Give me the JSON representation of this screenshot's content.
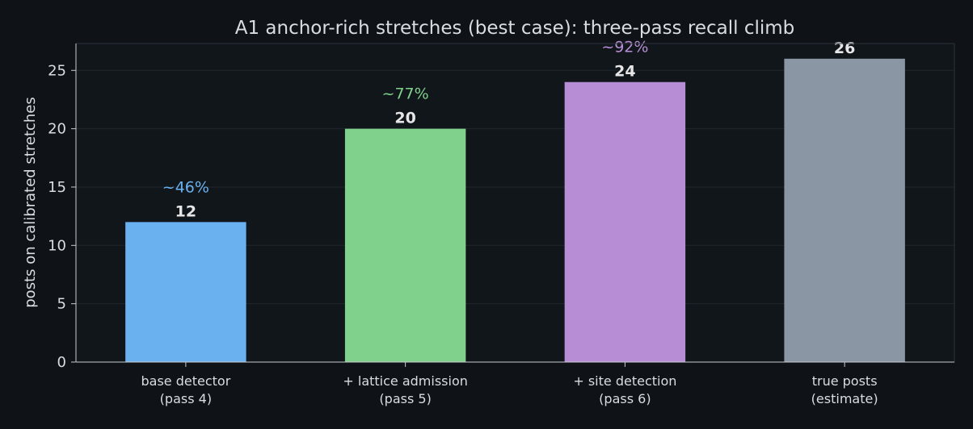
{
  "chart_data": {
    "type": "bar",
    "title": "A1 anchor-rich stretches (best case): three-pass recall climb",
    "xlabel": "",
    "ylabel": "posts on calibrated stretches",
    "ylim": [
      0,
      27.3
    ],
    "yticks": [
      0,
      5,
      10,
      15,
      20,
      25
    ],
    "grid": "horizontal",
    "categories": [
      [
        "base detector",
        "(pass 4)"
      ],
      [
        "+ lattice admission",
        "(pass 5)"
      ],
      [
        "+ site detection",
        "(pass 6)"
      ],
      [
        "true posts",
        "(estimate)"
      ]
    ],
    "values": [
      12,
      20,
      24,
      26
    ],
    "value_labels": [
      "12",
      "20",
      "24",
      "26"
    ],
    "recall_labels": [
      "~46%",
      "~77%",
      "~92%",
      ""
    ],
    "colors": [
      "#6ab1f0",
      "#7fd18b",
      "#b78ed6",
      "#8a96a3"
    ]
  }
}
